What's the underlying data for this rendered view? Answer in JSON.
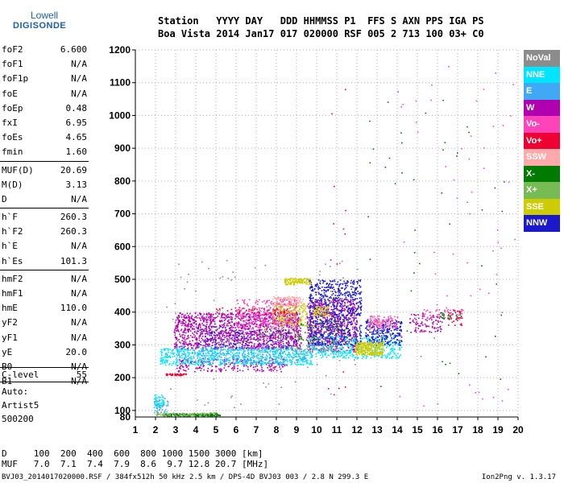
{
  "logo": {
    "line1": "Lowell",
    "line2": "DIGISONDE"
  },
  "header": {
    "labels": "Station   YYYY DAY   DDD HHMMSS P1  FFS S AXN PPS IGA PS",
    "values": "Boa Vista 2014 Jan17 017 020000 RSF 005 2 713 100 03+ C0"
  },
  "params": [
    [
      {
        "k": "foF2",
        "v": "6.600"
      },
      {
        "k": "foF1",
        "v": "N/A"
      },
      {
        "k": "foF1p",
        "v": "N/A"
      },
      {
        "k": "foE",
        "v": "N/A"
      },
      {
        "k": "foEp",
        "v": "0.48"
      },
      {
        "k": "fxI",
        "v": "6.95"
      },
      {
        "k": "foEs",
        "v": "4.65"
      },
      {
        "k": "fmin",
        "v": "1.60"
      }
    ],
    [
      {
        "k": "MUF(D)",
        "v": "20.69"
      },
      {
        "k": "M(D)",
        "v": "3.13"
      },
      {
        "k": "D",
        "v": "N/A"
      }
    ],
    [
      {
        "k": "h`F",
        "v": "260.3"
      },
      {
        "k": "h`F2",
        "v": "260.3"
      },
      {
        "k": "h`E",
        "v": "N/A"
      },
      {
        "k": "h`Es",
        "v": "101.3"
      }
    ],
    [
      {
        "k": "hmF2",
        "v": "N/A"
      },
      {
        "k": "hmF1",
        "v": "N/A"
      },
      {
        "k": "hmE",
        "v": "110.0"
      },
      {
        "k": "yF2",
        "v": "N/A"
      },
      {
        "k": "yF1",
        "v": "N/A"
      },
      {
        "k": "yE",
        "v": "20.0"
      },
      {
        "k": "B0",
        "v": "N/A"
      },
      {
        "k": "B1",
        "v": "N/A"
      }
    ]
  ],
  "clevel": {
    "k": "C-level",
    "v": "55"
  },
  "artist": {
    "line1": "Auto:",
    "line2": "Artist5",
    "line3": "500200"
  },
  "legend": [
    {
      "label": "NoVal",
      "color": "#8c8c8c"
    },
    {
      "label": "NNE",
      "color": "#00e5ff"
    },
    {
      "label": "E",
      "color": "#3fa9f5"
    },
    {
      "label": "W",
      "color": "#b000b0"
    },
    {
      "label": "Vo-",
      "color": "#ff44bb"
    },
    {
      "label": "Vo+",
      "color": "#ee0033"
    },
    {
      "label": "SSW",
      "color": "#ffaaaa"
    },
    {
      "label": "X-",
      "color": "#007a00"
    },
    {
      "label": "X+",
      "color": "#77bb55"
    },
    {
      "label": "SSE",
      "color": "#cccc00"
    },
    {
      "label": "NNW",
      "color": "#1a1acc"
    }
  ],
  "bottom": {
    "line1": "D     100  200  400  600  800 1000 1500 3000 [km]",
    "line2": "MUF   7.0  7.1  7.4  7.9  8.6  9.7 12.8 20.7 [MHz]"
  },
  "footer": {
    "left": "BVJ03_2014017020000.RSF / 384fx512h 50 kHz 2.5 km / DPS-4D BVJ03 003 / 2.8 N 299.3 E",
    "right": "Ion2Png v. 1.3.17"
  },
  "chart_data": {
    "type": "scatter",
    "xlim": [
      1,
      20
    ],
    "ylim": [
      80,
      1200
    ],
    "xticks": [
      1,
      2,
      3,
      4,
      5,
      6,
      7,
      8,
      9,
      10,
      11,
      12,
      13,
      14,
      15,
      16,
      17,
      18,
      19,
      20
    ],
    "yticks": [
      100,
      200,
      300,
      400,
      500,
      600,
      700,
      800,
      900,
      1000,
      1100,
      1200
    ],
    "ytick_labels": [
      "100",
      "200",
      "300",
      "400",
      "500",
      "600",
      "700",
      "800",
      "900",
      "1000",
      "1100",
      "1200"
    ],
    "extra_ylabel": {
      "value": 80,
      "label": "80"
    },
    "grid": true,
    "series": [
      {
        "color": "#b000b0",
        "regions": [
          [
            2.9,
            9.2,
            290,
            400,
            1400
          ],
          [
            9.5,
            12,
            280,
            440,
            700
          ],
          [
            14.6,
            16.2,
            340,
            400,
            90
          ],
          [
            3,
            8.5,
            220,
            260,
            250
          ]
        ]
      },
      {
        "color": "#00e5ff",
        "regions": [
          [
            2.2,
            9.8,
            240,
            290,
            700
          ],
          [
            9.6,
            14.2,
            260,
            330,
            400
          ],
          [
            1.9,
            2.4,
            110,
            150,
            60
          ]
        ]
      },
      {
        "color": "#3fa9f5",
        "regions": [
          [
            3,
            9.5,
            245,
            300,
            300
          ],
          [
            1.9,
            2.6,
            95,
            140,
            40
          ]
        ]
      },
      {
        "color": "#1a1acc",
        "regions": [
          [
            9.6,
            12.2,
            300,
            500,
            700
          ],
          [
            12.4,
            14.2,
            300,
            380,
            260
          ],
          [
            4,
            9,
            290,
            360,
            150
          ]
        ]
      },
      {
        "color": "#cccc00",
        "regions": [
          [
            8.4,
            9.7,
            485,
            505,
            120
          ],
          [
            7.8,
            9.5,
            360,
            430,
            200
          ],
          [
            11.9,
            13.3,
            270,
            310,
            260
          ],
          [
            9.8,
            10.6,
            390,
            420,
            60
          ]
        ]
      },
      {
        "color": "#ffaaaa",
        "regions": [
          [
            7.8,
            9.3,
            420,
            450,
            120
          ],
          [
            12.5,
            13.5,
            365,
            380,
            40
          ]
        ]
      },
      {
        "color": "#ff44bb",
        "regions": [
          [
            6,
            9,
            350,
            440,
            300
          ],
          [
            12.5,
            14,
            350,
            390,
            100
          ],
          [
            15.2,
            17.2,
            380,
            410,
            60
          ],
          [
            14,
            20,
            100,
            1190,
            60
          ]
        ]
      },
      {
        "color": "#ee0033",
        "regions": [
          [
            2.5,
            3.5,
            208,
            214,
            50
          ],
          [
            5,
            9,
            395,
            415,
            60
          ],
          [
            16.5,
            17.2,
            360,
            410,
            30
          ],
          [
            10.5,
            11.5,
            140,
            1150,
            20
          ]
        ]
      },
      {
        "color": "#007a00",
        "regions": [
          [
            2.4,
            5.2,
            84,
            92,
            150
          ],
          [
            9,
            11.5,
            300,
            380,
            60
          ],
          [
            12.5,
            19.5,
            120,
            1050,
            45
          ],
          [
            16,
            17.2,
            380,
            400,
            20
          ]
        ]
      },
      {
        "color": "#77bb55",
        "regions": [
          [
            2,
            5,
            86,
            95,
            80
          ],
          [
            7,
            10,
            320,
            360,
            40
          ]
        ]
      },
      {
        "color": "#8c8c8c",
        "regions": [
          [
            2.5,
            12,
            110,
            560,
            80
          ],
          [
            8.5,
            11,
            280,
            300,
            40
          ]
        ]
      }
    ]
  }
}
